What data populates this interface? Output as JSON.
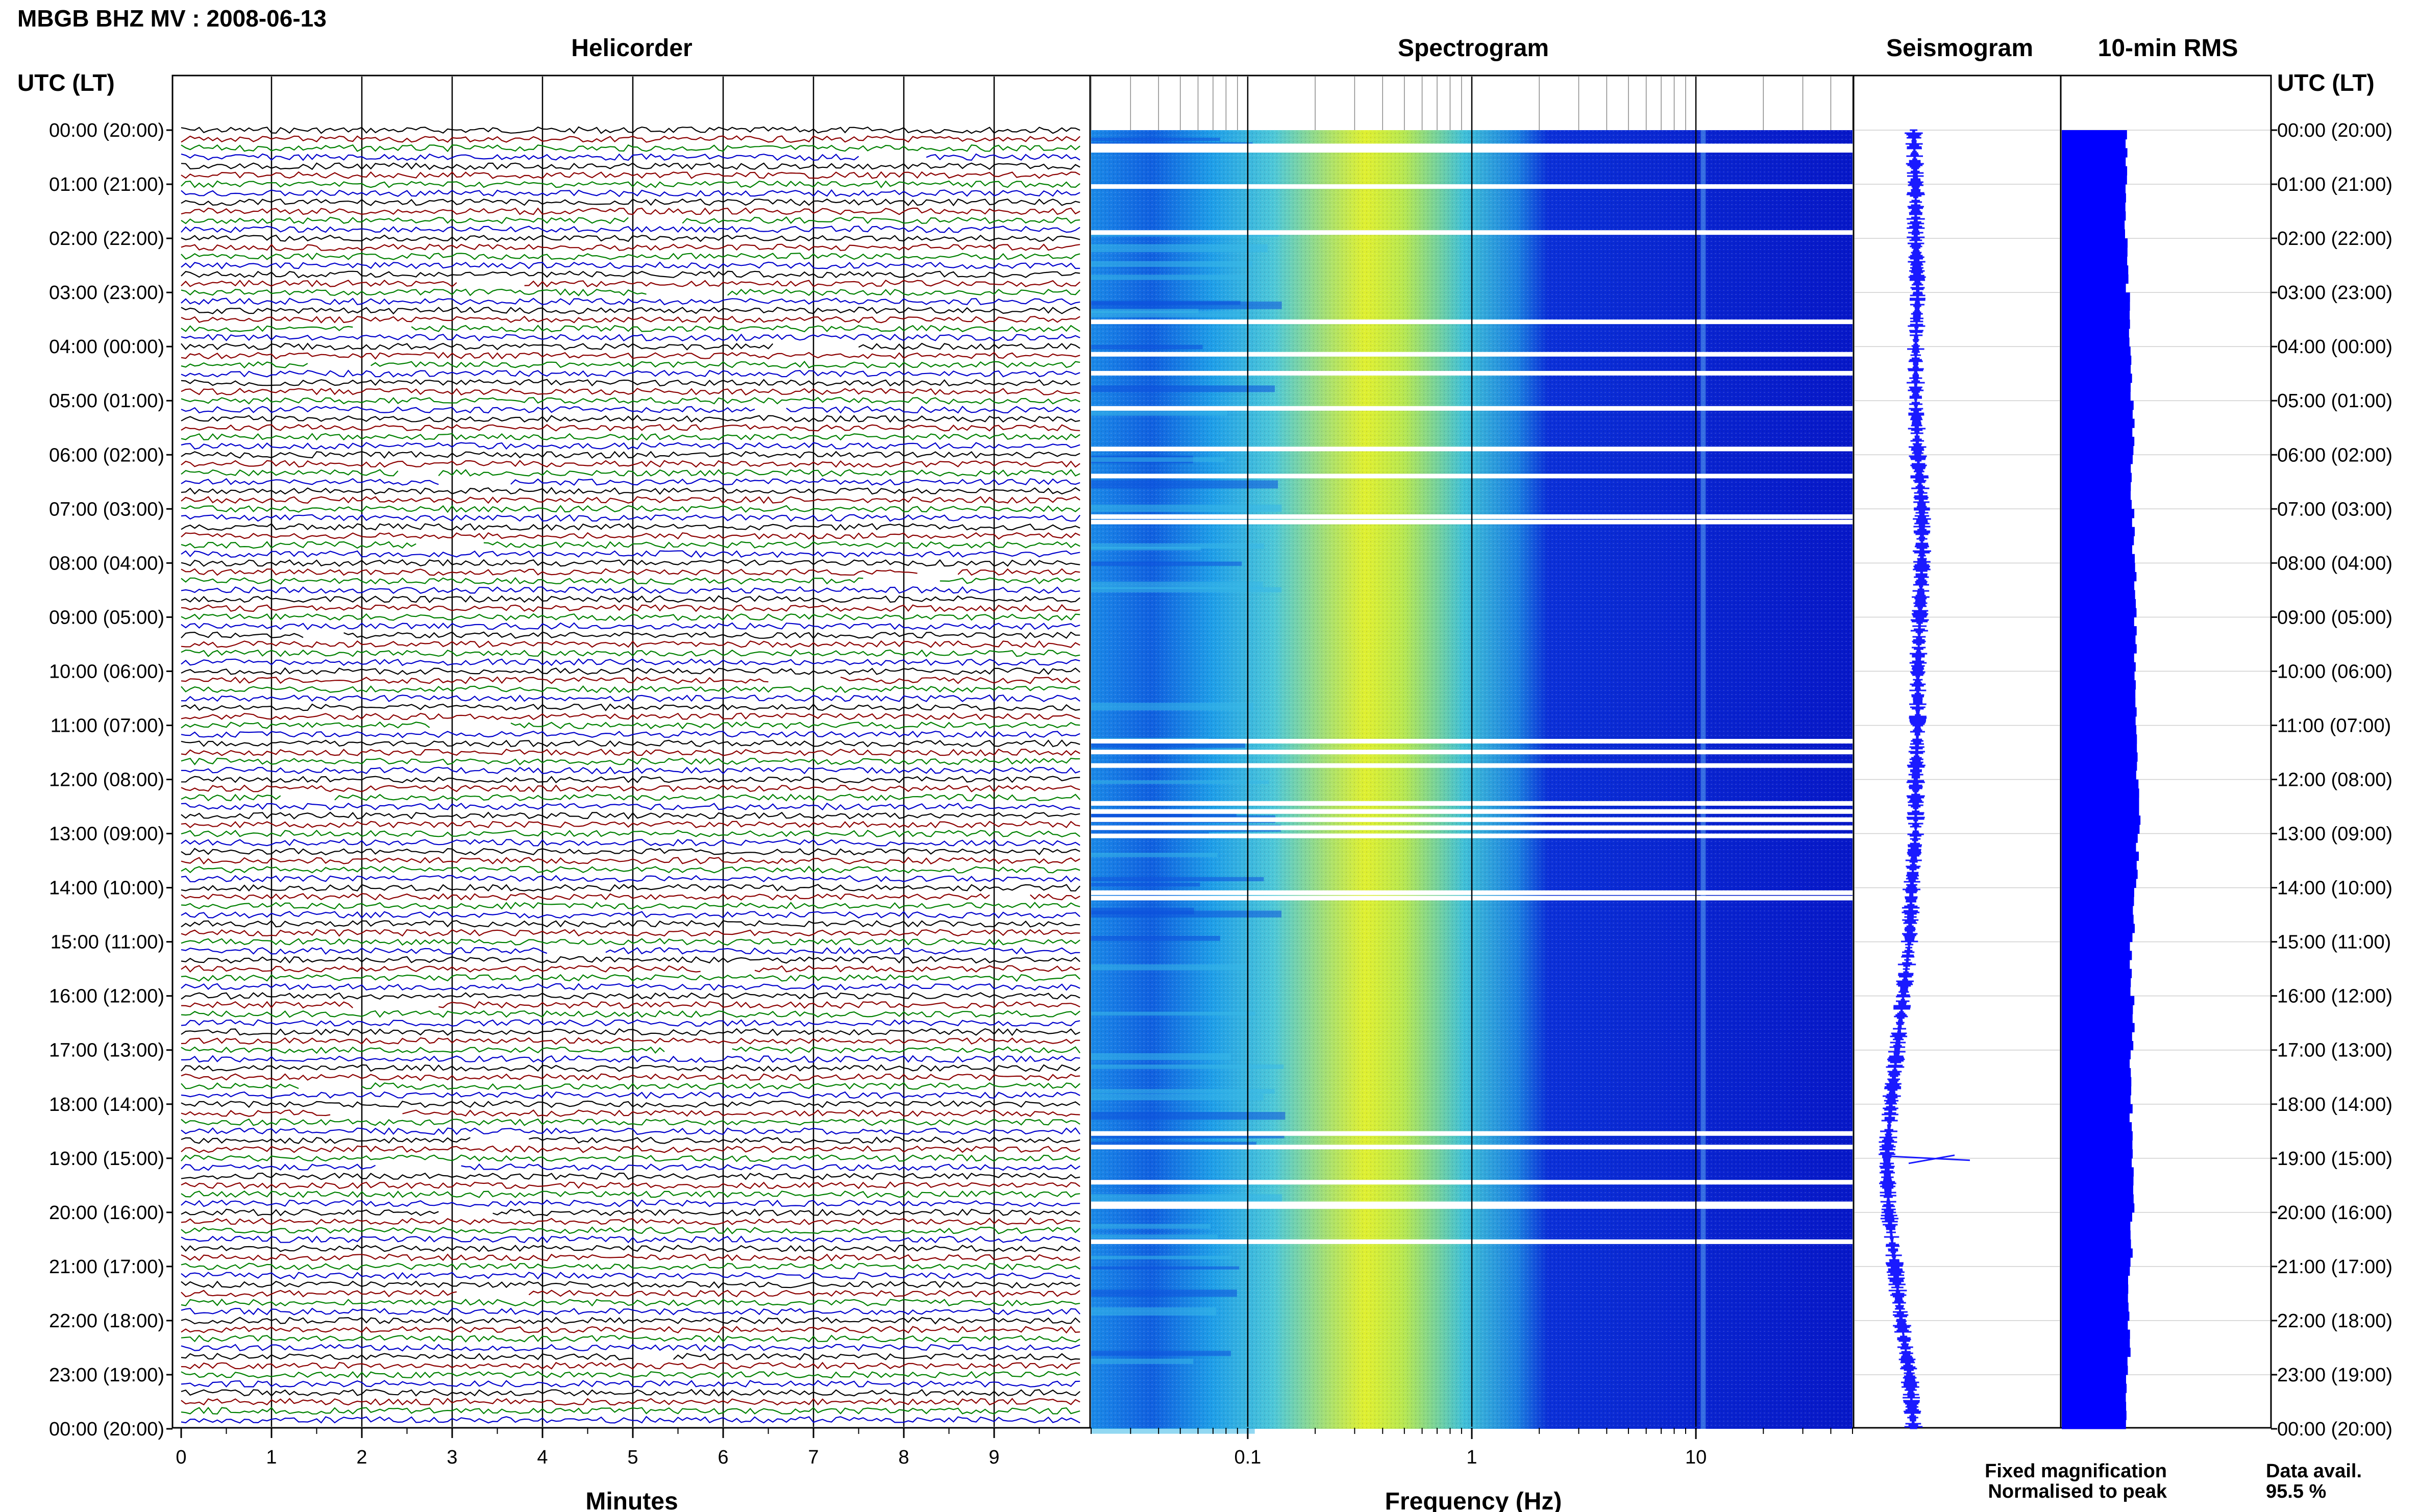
{
  "title": "MBGB BHZ MV : 2008-06-13",
  "axis_header": "UTC (LT)",
  "panels": {
    "helicorder": "Helicorder",
    "spectrogram": "Spectrogram",
    "seismogram": "Seismogram",
    "rms": "10-min RMS"
  },
  "xlabels": {
    "helicorder": "Minutes",
    "spectrogram": "Frequency (Hz)"
  },
  "legend": {
    "fixed": "Fixed magnification",
    "fixed_color": "#0000ff",
    "normalised": "Normalised to peak",
    "normalised_color": "#ff0000"
  },
  "availability": {
    "label": "Data avail.",
    "value": "95.5 %"
  },
  "colors": {
    "trace_cycle": [
      "#000000",
      "#8b0000",
      "#008000",
      "#0000cc"
    ],
    "seismogram": "#1a1aff",
    "rms": "#0000ff",
    "spec_low": "#0a1ad6",
    "spec_high": "#e8f020"
  },
  "chart_data": {
    "type": "heatmap",
    "description": "Daily seismic summary: helicorder traces, spectrogram, envelope seismogram and 10-min RMS",
    "hour_labels": [
      "00:00 (20:00)",
      "01:00 (21:00)",
      "02:00 (22:00)",
      "03:00 (23:00)",
      "04:00 (00:00)",
      "05:00 (01:00)",
      "06:00 (02:00)",
      "07:00 (03:00)",
      "08:00 (04:00)",
      "09:00 (05:00)",
      "10:00 (06:00)",
      "11:00 (07:00)",
      "12:00 (08:00)",
      "13:00 (09:00)",
      "14:00 (10:00)",
      "15:00 (11:00)",
      "16:00 (12:00)",
      "17:00 (13:00)",
      "18:00 (14:00)",
      "19:00 (15:00)",
      "20:00 (16:00)",
      "21:00 (17:00)",
      "22:00 (18:00)",
      "23:00 (19:00)",
      "00:00 (20:00)"
    ],
    "helicorder_ticks": [
      "0",
      "1",
      "2",
      "3",
      "4",
      "5",
      "6",
      "7",
      "8",
      "9"
    ],
    "helicorder_xlim": [
      0,
      10
    ],
    "spectrogram_ticks": [
      {
        "value": 0.1,
        "label": "0.1"
      },
      {
        "value": 1,
        "label": "1"
      },
      {
        "value": 10,
        "label": "10"
      }
    ],
    "spectrogram_xlim": [
      0.02,
      50
    ],
    "spectrogram_scale": "log",
    "minor_ticks": true,
    "seismogram_envelope": [
      [
        0,
        0.29
      ],
      [
        1,
        0.3
      ],
      [
        2,
        0.3
      ],
      [
        3,
        0.31
      ],
      [
        4,
        0.3
      ],
      [
        5,
        0.3
      ],
      [
        6,
        0.31
      ],
      [
        7,
        0.33
      ],
      [
        8,
        0.33
      ],
      [
        9,
        0.32
      ],
      [
        10,
        0.31
      ],
      [
        11,
        0.31
      ],
      [
        12,
        0.3
      ],
      [
        13,
        0.3
      ],
      [
        14,
        0.28
      ],
      [
        15,
        0.27
      ],
      [
        16,
        0.24
      ],
      [
        17,
        0.21
      ],
      [
        18,
        0.18
      ],
      [
        19,
        0.16
      ],
      [
        20,
        0.17
      ],
      [
        21,
        0.2
      ],
      [
        22,
        0.23
      ],
      [
        23,
        0.27
      ],
      [
        24,
        0.29
      ]
    ],
    "rms_hourly": [
      0.31,
      0.3,
      0.31,
      0.32,
      0.33,
      0.34,
      0.33,
      0.34,
      0.35,
      0.35,
      0.35,
      0.36,
      0.37,
      0.36,
      0.34,
      0.33,
      0.34,
      0.33,
      0.33,
      0.34,
      0.33,
      0.32,
      0.32,
      0.31
    ],
    "spectrogram_gaps_utc_hours": [
      0.25,
      0.33,
      1.0,
      1.85,
      3.5,
      4.1,
      4.45,
      5.1,
      5.85,
      6.35,
      7.1,
      7.2,
      11.25,
      11.45,
      11.7,
      12.4,
      12.55,
      12.7,
      12.85,
      13.0,
      14.05,
      14.15,
      18.5,
      18.75,
      19.4,
      19.8,
      19.85,
      20.5
    ]
  }
}
